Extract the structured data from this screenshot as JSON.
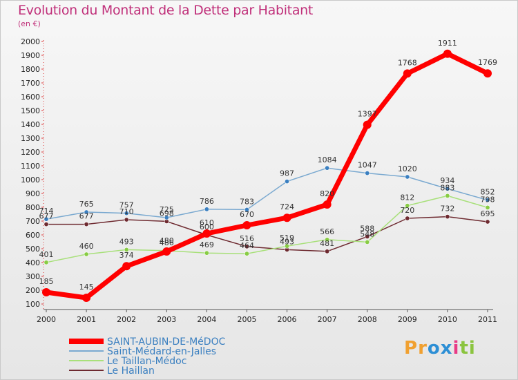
{
  "chart_data": {
    "type": "line",
    "title": "Evolution du Montant de la Dette par Habitant",
    "subtitle": "(en €)",
    "xlabel": "",
    "ylabel": "",
    "x": [
      "2000",
      "2001",
      "2002",
      "2003",
      "2004",
      "2005",
      "2006",
      "2007",
      "2008",
      "2009",
      "2010",
      "2011"
    ],
    "yticks": [
      "100",
      "200",
      "300",
      "400",
      "500",
      "600",
      "700",
      "800",
      "900",
      "1000",
      "1100",
      "1200",
      "1300",
      "1400",
      "1500",
      "1600",
      "1700",
      "1800",
      "1900",
      "2000"
    ],
    "ylim": [
      100,
      2000
    ],
    "grid": false,
    "legend_position": "bottom-left",
    "series": [
      {
        "name": "SAINT-AUBIN-DE-MéDOC",
        "color": "#ff0000",
        "width": 7,
        "marker_color": "#ff0000",
        "radius": 6,
        "values": [
          185,
          145,
          374,
          480,
          610,
          670,
          724,
          820,
          1397,
          1768,
          1911,
          1769
        ],
        "labels": [
          "185",
          "145",
          "374",
          "480",
          "610",
          "670",
          "724",
          "820",
          "1397",
          "1768",
          "1911",
          "1769"
        ]
      },
      {
        "name": "Saint-Médard-en-Jalles",
        "color": "#7aa9d0",
        "width": 1.5,
        "marker_color": "#3a7fc0",
        "radius": 3.2,
        "values": [
          714,
          765,
          757,
          725,
          786,
          783,
          987,
          1084,
          1047,
          1020,
          934,
          852
        ],
        "labels": [
          "714",
          "765",
          "757",
          "725",
          "786",
          "783",
          "987",
          "1084",
          "1047",
          "1020",
          "934",
          "852"
        ]
      },
      {
        "name": "Le Taillan-Médoc",
        "color": "#a8e07a",
        "width": 1.5,
        "marker_color": "#88cc44",
        "radius": 3.2,
        "values": [
          401,
          460,
          493,
          486,
          469,
          464,
          519,
          566,
          548,
          812,
          883,
          798
        ],
        "labels": [
          "401",
          "460",
          "493",
          "486",
          "469",
          "464",
          "519",
          "566",
          "548",
          "812",
          "883",
          "798"
        ]
      },
      {
        "name": "Le Haillan",
        "color": "#6e2a30",
        "width": 1.5,
        "marker_color": "#6e2a30",
        "radius": 3.2,
        "values": [
          677,
          677,
          710,
          698,
          600,
          516,
          493,
          481,
          588,
          720,
          732,
          695
        ],
        "labels": [
          "677",
          "677",
          "710",
          "698",
          "600",
          "516",
          "493",
          "481",
          "588",
          "720",
          "732",
          "695"
        ]
      }
    ]
  },
  "logo": {
    "letters": [
      "P",
      "r",
      "o",
      "x",
      "i",
      "t",
      "i"
    ],
    "colors": [
      "#f0a030",
      "#f0a030",
      "#2d8fd5",
      "#2d8fd5",
      "#e83a86",
      "#8bc43f",
      "#8bc43f"
    ]
  }
}
